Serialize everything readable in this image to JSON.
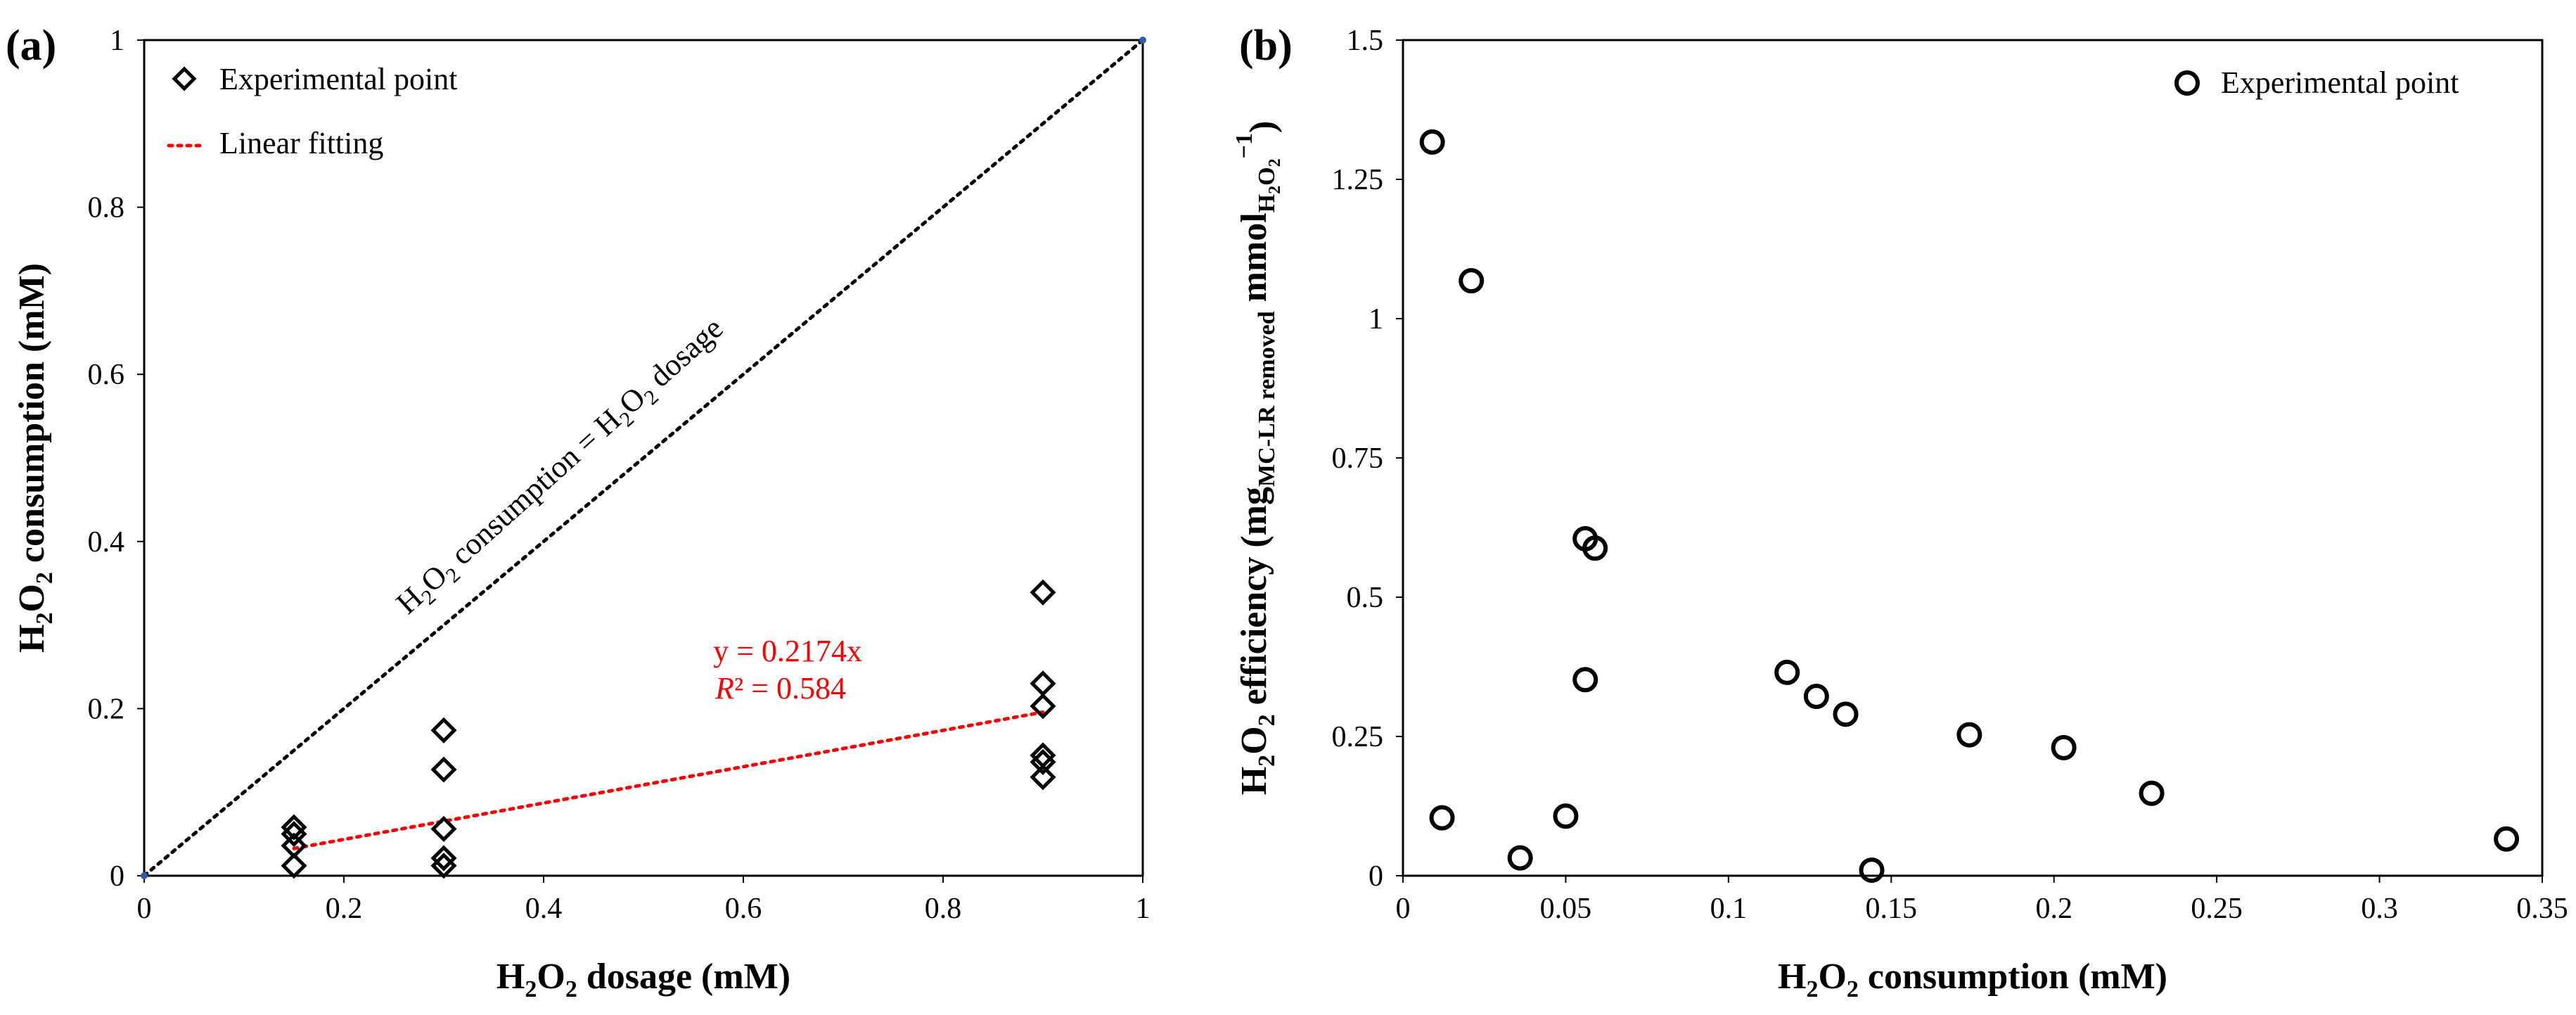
{
  "chart_data": [
    {
      "panel": "(a)",
      "type": "scatter",
      "xlabel": "H2O2 dosage (mM)",
      "ylabel": "H2O2 consumption (mM)",
      "xlim": [
        0,
        1
      ],
      "ylim": [
        0,
        1
      ],
      "x_ticks": [
        "0",
        "0.2",
        "0.4",
        "0.6",
        "0.8",
        "1"
      ],
      "y_ticks": [
        "0",
        "0.2",
        "0.4",
        "0.6",
        "0.8",
        "1"
      ],
      "legend": {
        "placement": "top-left",
        "entries": [
          "Experimental point",
          "Linear fitting"
        ]
      },
      "series": [
        {
          "name": "Experimental point",
          "marker": "diamond",
          "points": [
            [
              0.15,
              0.058
            ],
            [
              0.15,
              0.05
            ],
            [
              0.15,
              0.036
            ],
            [
              0.15,
              0.012
            ],
            [
              0.3,
              0.174
            ],
            [
              0.3,
              0.127
            ],
            [
              0.3,
              0.056
            ],
            [
              0.3,
              0.021
            ],
            [
              0.3,
              0.012
            ],
            [
              0.9,
              0.339
            ],
            [
              0.9,
              0.23
            ],
            [
              0.9,
              0.203
            ],
            [
              0.9,
              0.144
            ],
            [
              0.9,
              0.136
            ],
            [
              0.9,
              0.118
            ]
          ]
        },
        {
          "name": "Linear fitting",
          "type": "line",
          "style": "dotted",
          "color": "#ff0000",
          "x": [
            0.15,
            0.9
          ],
          "y": [
            0.0326,
            0.1957
          ]
        },
        {
          "name": "H2O2 consumption = H2O2 dosage",
          "type": "line",
          "style": "dotted",
          "color": "#000000",
          "x": [
            0,
            1
          ],
          "y": [
            0,
            1
          ]
        }
      ],
      "annotations": {
        "equation": "y = 0.2174x",
        "r2_symbol": "R",
        "r2_value": "² = 0.584",
        "diagonal_label": "H2O2 consumption = H2O2 dosage"
      }
    },
    {
      "panel": "(b)",
      "type": "scatter",
      "xlabel": "H2O2 consumption (mM)",
      "ylabel": "H2O2 efficiency (mgMC-LR removed mmolH2O2−1)",
      "xlim": [
        0,
        0.35
      ],
      "ylim": [
        0,
        1.5
      ],
      "x_ticks": [
        "0",
        "0.05",
        "0.1",
        "0.15",
        "0.2",
        "0.25",
        "0.3",
        "0.35"
      ],
      "y_ticks": [
        "0",
        "0.25",
        "0.5",
        "0.75",
        "1",
        "1.25",
        "1.5"
      ],
      "legend": {
        "placement": "top-right",
        "entries": [
          "Experimental point"
        ]
      },
      "series": [
        {
          "name": "Experimental point",
          "marker": "circle",
          "points": [
            [
              0.009,
              1.317
            ],
            [
              0.012,
              0.104
            ],
            [
              0.021,
              1.068
            ],
            [
              0.036,
              0.032
            ],
            [
              0.05,
              0.107
            ],
            [
              0.056,
              0.605
            ],
            [
              0.056,
              0.352
            ],
            [
              0.059,
              0.588
            ],
            [
              0.118,
              0.365
            ],
            [
              0.127,
              0.322
            ],
            [
              0.136,
              0.29
            ],
            [
              0.144,
              0.01
            ],
            [
              0.174,
              0.253
            ],
            [
              0.203,
              0.23
            ],
            [
              0.23,
              0.148
            ],
            [
              0.339,
              0.066
            ]
          ]
        }
      ]
    }
  ]
}
